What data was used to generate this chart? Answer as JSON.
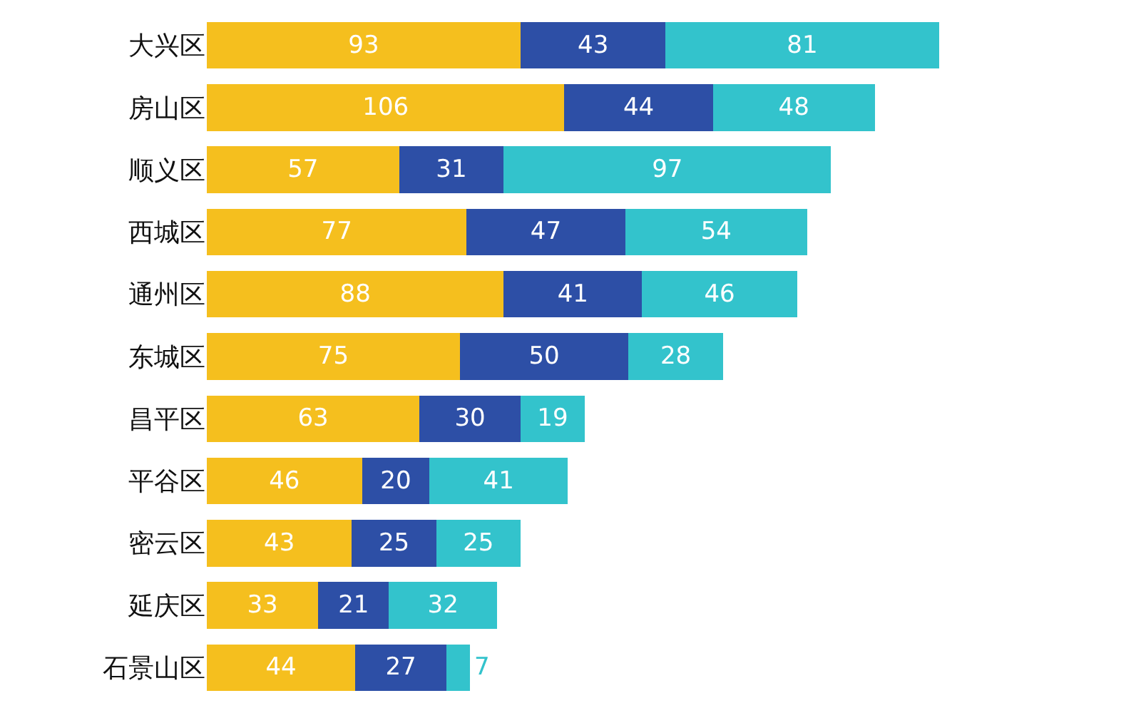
{
  "chart_data": {
    "type": "bar",
    "orientation": "horizontal",
    "stacked": true,
    "data_labels": true,
    "categories": [
      "大兴区",
      "房山区",
      "顺义区",
      "西城区",
      "通州区",
      "东城区",
      "昌平区",
      "平谷区",
      "密云区",
      "延庆区",
      "石景山区"
    ],
    "series": [
      {
        "color": "#f5bf1e",
        "values": [
          93,
          106,
          57,
          77,
          88,
          75,
          63,
          46,
          43,
          33,
          44
        ]
      },
      {
        "color": "#2d4fa6",
        "values": [
          43,
          44,
          31,
          47,
          41,
          50,
          30,
          20,
          25,
          21,
          27
        ]
      },
      {
        "color": "#33c3cc",
        "values": [
          81,
          48,
          97,
          54,
          46,
          28,
          19,
          41,
          25,
          32,
          7
        ]
      }
    ]
  }
}
